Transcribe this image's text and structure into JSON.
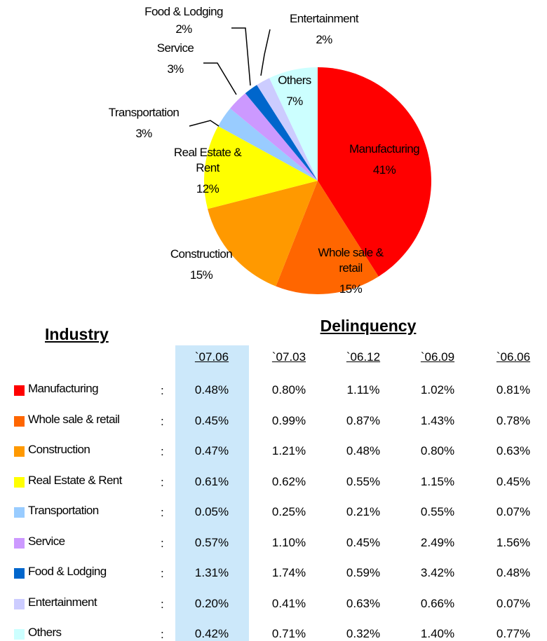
{
  "chart_data": {
    "type": "pie",
    "categories": [
      "Manufacturing",
      "Whole sale & retail",
      "Construction",
      "Real Estate & Rent",
      "Transportation",
      "Service",
      "Food & Lodging",
      "Entertainment",
      "Others"
    ],
    "values": [
      41,
      15,
      15,
      12,
      3,
      3,
      2,
      2,
      7
    ],
    "value_labels": [
      "41%",
      "15%",
      "15%",
      "12%",
      "3%",
      "3%",
      "2%",
      "2%",
      "7%"
    ],
    "colors": [
      "#ff0000",
      "#ff6600",
      "#ff9900",
      "#ffff00",
      "#99ccff",
      "#cc99ff",
      "#0066cc",
      "#ccccff",
      "#ccffff"
    ]
  },
  "table": {
    "industry_header": "Industry",
    "delinquency_header": "Delinquency",
    "separator": ":",
    "columns": [
      "`07.06",
      "`07.03",
      "`06.12",
      "`06.09",
      "`06.06"
    ],
    "rows": [
      [
        "0.48%",
        "0.80%",
        "1.11%",
        "1.02%",
        "0.81%"
      ],
      [
        "0.45%",
        "0.99%",
        "0.87%",
        "1.43%",
        "0.78%"
      ],
      [
        "0.47%",
        "1.21%",
        "0.48%",
        "0.80%",
        "0.63%"
      ],
      [
        "0.61%",
        "0.62%",
        "0.55%",
        "1.15%",
        "0.45%"
      ],
      [
        "0.05%",
        "0.25%",
        "0.21%",
        "0.55%",
        "0.07%"
      ],
      [
        "0.57%",
        "1.10%",
        "0.45%",
        "2.49%",
        "1.56%"
      ],
      [
        "1.31%",
        "1.74%",
        "0.59%",
        "3.42%",
        "0.48%"
      ],
      [
        "0.20%",
        "0.41%",
        "0.63%",
        "0.66%",
        "0.07%"
      ],
      [
        "0.42%",
        "0.71%",
        "0.32%",
        "1.40%",
        "0.77%"
      ]
    ]
  }
}
